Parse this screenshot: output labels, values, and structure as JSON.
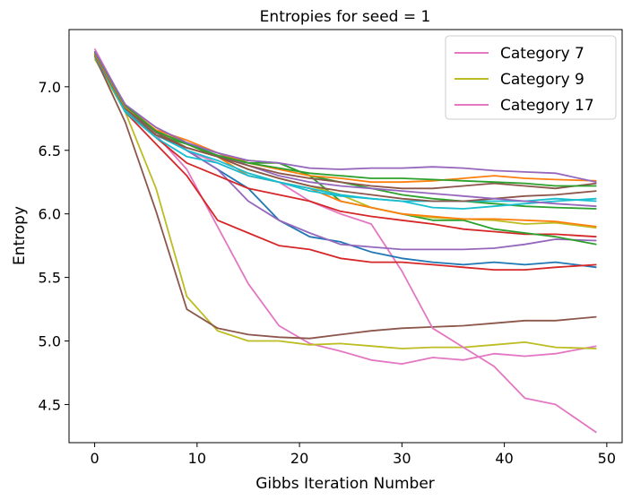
{
  "chart_data": {
    "type": "line",
    "title": "Entropies for seed = 1",
    "xlabel": "Gibbs Iteration Number",
    "ylabel": "Entropy",
    "xlim": [
      -2.5,
      51.5
    ],
    "ylim": [
      4.2,
      7.45
    ],
    "xticks": [
      0,
      10,
      20,
      30,
      40,
      50
    ],
    "yticks": [
      4.5,
      5.0,
      5.5,
      6.0,
      6.5,
      7.0
    ],
    "xtick_labels": [
      "0",
      "10",
      "20",
      "30",
      "40",
      "50"
    ],
    "ytick_labels": [
      "4.5",
      "5.0",
      "5.5",
      "6.0",
      "6.5",
      "7.0"
    ],
    "grid": false,
    "legend_position": "top-right",
    "legend": [
      {
        "label": "Category 7",
        "color": "#e377c2"
      },
      {
        "label": "Category 9",
        "color": "#bcbd22"
      },
      {
        "label": "Category 17",
        "color": "#e377c2"
      }
    ],
    "x": [
      0,
      3,
      6,
      9,
      12,
      15,
      18,
      21,
      24,
      27,
      30,
      33,
      36,
      39,
      42,
      45,
      49
    ],
    "series": [
      {
        "color": "#e377c2",
        "values": [
          7.28,
          6.8,
          6.62,
          6.35,
          5.9,
          5.45,
          5.12,
          4.98,
          4.92,
          4.85,
          4.82,
          4.87,
          4.85,
          4.9,
          4.88,
          4.9,
          4.96
        ]
      },
      {
        "color": "#bcbd22",
        "values": [
          7.22,
          6.8,
          6.2,
          5.35,
          5.08,
          5.0,
          5.0,
          4.97,
          4.98,
          4.96,
          4.94,
          4.95,
          4.95,
          4.97,
          4.99,
          4.95,
          4.94
        ]
      },
      {
        "color": "#8c564b",
        "values": [
          7.24,
          6.72,
          6.02,
          5.25,
          5.1,
          5.05,
          5.03,
          5.02,
          5.05,
          5.08,
          5.1,
          5.11,
          5.12,
          5.14,
          5.16,
          5.16,
          5.19
        ]
      },
      {
        "color": "#e377c2",
        "values": [
          7.3,
          6.85,
          6.65,
          6.5,
          6.4,
          6.3,
          6.25,
          6.1,
          6.0,
          5.92,
          5.55,
          5.1,
          4.95,
          4.8,
          4.55,
          4.5,
          4.28
        ]
      },
      {
        "color": "#1f77b4",
        "values": [
          7.25,
          6.85,
          6.65,
          6.5,
          6.35,
          6.2,
          5.95,
          5.82,
          5.78,
          5.7,
          5.65,
          5.62,
          5.6,
          5.62,
          5.6,
          5.62,
          5.58
        ]
      },
      {
        "color": "#d62728",
        "values": [
          7.27,
          6.8,
          6.55,
          6.3,
          5.95,
          5.85,
          5.75,
          5.72,
          5.65,
          5.62,
          5.62,
          5.6,
          5.58,
          5.56,
          5.56,
          5.58,
          5.6
        ]
      },
      {
        "color": "#9467bd",
        "values": [
          7.26,
          6.85,
          6.65,
          6.5,
          6.35,
          6.1,
          5.95,
          5.85,
          5.76,
          5.74,
          5.72,
          5.72,
          5.72,
          5.73,
          5.76,
          5.8,
          5.79
        ]
      },
      {
        "color": "#d62728",
        "values": [
          7.24,
          6.82,
          6.6,
          6.4,
          6.3,
          6.2,
          6.15,
          6.1,
          6.02,
          5.98,
          5.95,
          5.92,
          5.88,
          5.86,
          5.84,
          5.84,
          5.82
        ]
      },
      {
        "color": "#2ca02c",
        "values": [
          7.26,
          6.85,
          6.65,
          6.55,
          6.45,
          6.4,
          6.4,
          6.3,
          6.1,
          6.05,
          6.0,
          5.95,
          5.95,
          5.88,
          5.85,
          5.82,
          5.76
        ]
      },
      {
        "color": "#bcbd22",
        "values": [
          7.25,
          6.83,
          6.65,
          6.52,
          6.45,
          6.35,
          6.28,
          6.22,
          6.15,
          6.05,
          6.0,
          5.97,
          5.96,
          5.95,
          5.92,
          5.93,
          5.89
        ]
      },
      {
        "color": "#ff7f0e",
        "values": [
          7.27,
          6.85,
          6.68,
          6.55,
          6.45,
          6.3,
          6.25,
          6.2,
          6.1,
          6.05,
          6.0,
          5.98,
          5.96,
          5.96,
          5.95,
          5.94,
          5.9
        ]
      },
      {
        "color": "#2ca02c",
        "values": [
          7.28,
          6.82,
          6.62,
          6.55,
          6.45,
          6.42,
          6.4,
          6.3,
          6.25,
          6.2,
          6.15,
          6.12,
          6.1,
          6.08,
          6.06,
          6.05,
          6.04
        ]
      },
      {
        "color": "#17becf",
        "values": [
          7.25,
          6.8,
          6.6,
          6.45,
          6.4,
          6.3,
          6.25,
          6.18,
          6.14,
          6.12,
          6.1,
          6.05,
          6.04,
          6.06,
          6.08,
          6.1,
          6.12
        ]
      },
      {
        "color": "#17becf",
        "values": [
          7.24,
          6.82,
          6.62,
          6.5,
          6.42,
          6.32,
          6.25,
          6.2,
          6.15,
          6.12,
          6.1,
          6.1,
          6.1,
          6.1,
          6.1,
          6.12,
          6.1
        ]
      },
      {
        "color": "#8c564b",
        "values": [
          7.26,
          6.84,
          6.64,
          6.52,
          6.45,
          6.35,
          6.28,
          6.22,
          6.18,
          6.15,
          6.12,
          6.1,
          6.1,
          6.12,
          6.14,
          6.15,
          6.18
        ]
      },
      {
        "color": "#9467bd",
        "values": [
          7.27,
          6.85,
          6.65,
          6.55,
          6.48,
          6.38,
          6.3,
          6.25,
          6.22,
          6.2,
          6.18,
          6.16,
          6.14,
          6.12,
          6.1,
          6.08,
          6.06
        ]
      },
      {
        "color": "#8c564b",
        "values": [
          7.25,
          6.83,
          6.62,
          6.52,
          6.45,
          6.38,
          6.32,
          6.28,
          6.25,
          6.22,
          6.2,
          6.2,
          6.22,
          6.24,
          6.22,
          6.2,
          6.24
        ]
      },
      {
        "color": "#ff7f0e",
        "values": [
          7.26,
          6.84,
          6.66,
          6.58,
          6.48,
          6.4,
          6.35,
          6.3,
          6.28,
          6.25,
          6.25,
          6.26,
          6.28,
          6.3,
          6.28,
          6.27,
          6.26
        ]
      },
      {
        "color": "#2ca02c",
        "values": [
          7.27,
          6.85,
          6.65,
          6.55,
          6.46,
          6.4,
          6.36,
          6.32,
          6.3,
          6.28,
          6.28,
          6.27,
          6.26,
          6.25,
          6.24,
          6.22,
          6.22
        ]
      },
      {
        "color": "#9467bd",
        "values": [
          7.28,
          6.86,
          6.68,
          6.56,
          6.48,
          6.42,
          6.4,
          6.36,
          6.35,
          6.36,
          6.36,
          6.37,
          6.36,
          6.34,
          6.33,
          6.32,
          6.25
        ]
      }
    ]
  }
}
